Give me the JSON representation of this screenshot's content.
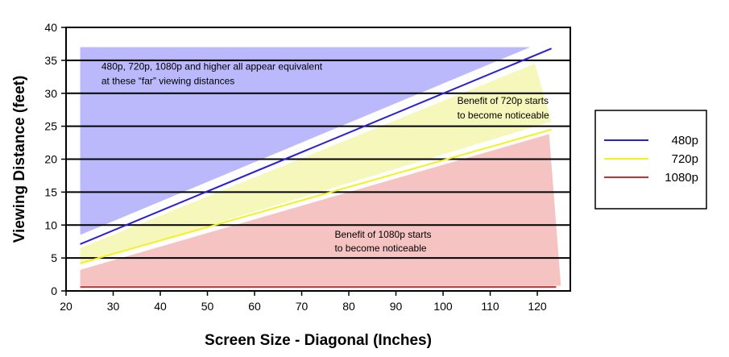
{
  "chart_data": {
    "type": "line",
    "xlabel": "Screen Size - Diagonal (Inches)",
    "ylabel": "Viewing Distance (feet)",
    "xlim": [
      20,
      127
    ],
    "ylim": [
      0,
      40
    ],
    "xticks": [
      20,
      30,
      40,
      50,
      60,
      70,
      80,
      90,
      100,
      110,
      120
    ],
    "yticks": [
      0,
      5,
      10,
      15,
      20,
      25,
      30,
      35,
      40
    ],
    "grid": "horizontal",
    "legend_position": "right",
    "series": [
      {
        "name": "480p",
        "color": "#2b1fd6",
        "x": [
          23,
          123
        ],
        "y": [
          7.1,
          36.8
        ]
      },
      {
        "name": "720p",
        "color": "#f2f21c",
        "x": [
          23,
          123
        ],
        "y": [
          4.2,
          24.5
        ]
      },
      {
        "name": "1080p",
        "color": "#d42a2a",
        "x": [
          23,
          124
        ],
        "y": [
          0.6,
          0.6
        ]
      }
    ],
    "regions": [
      {
        "color": "#bbb8fb",
        "x": [
          23,
          118.5,
          23
        ],
        "y": [
          37,
          37,
          8.5
        ]
      },
      {
        "color": "#f6f8bb",
        "x": [
          23,
          119.5,
          123,
          23
        ],
        "y": [
          6.5,
          34.5,
          25.7,
          4.0
        ]
      },
      {
        "color": "#f6c3c3",
        "x": [
          23,
          122.5,
          125,
          23
        ],
        "y": [
          3.2,
          23.8,
          0.8,
          0.8
        ]
      }
    ],
    "annotations": [
      {
        "lines": [
          "480p, 720p, 1080p and higher all appear equivalent",
          "at these “far” viewing distances"
        ],
        "x": 27.5,
        "y": [
          33.6,
          31.4
        ]
      },
      {
        "lines": [
          "Benefit of 720p starts",
          "to become noticeable"
        ],
        "x": 103,
        "y": [
          28.4,
          26.2
        ]
      },
      {
        "lines": [
          "Benefit of 1080p starts",
          "to become noticeable"
        ],
        "x": 77,
        "y": [
          8.1,
          6.0
        ]
      }
    ]
  }
}
